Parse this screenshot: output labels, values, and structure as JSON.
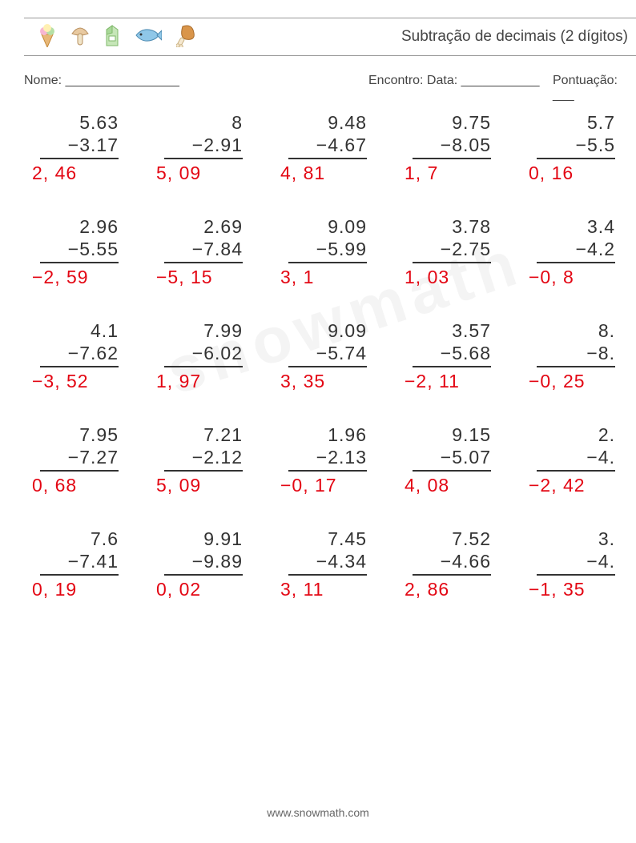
{
  "header": {
    "title": "Subtração de decimais (2 dígitos)",
    "icons": [
      "icecream",
      "mushroom",
      "milk",
      "fish",
      "drumstick"
    ]
  },
  "info": {
    "name_label": "Nome: ________________",
    "date_label": "Encontro: Data: ___________",
    "score_label": "Pontuação: ___"
  },
  "answer_color": "#e30613",
  "problem_color": "#333333",
  "problems": [
    [
      {
        "a": "5.63",
        "b": "−3.17",
        "ans": "2, 46"
      },
      {
        "a": "8",
        "b": "−2.91",
        "ans": "5, 09"
      },
      {
        "a": "9.48",
        "b": "−4.67",
        "ans": "4, 81"
      },
      {
        "a": "9.75",
        "b": "−8.05",
        "ans": "1, 7"
      },
      {
        "a": "5.7",
        "b": "−5.5",
        "ans": "0, 16"
      }
    ],
    [
      {
        "a": "2.96",
        "b": "−5.55",
        "ans": "−2, 59"
      },
      {
        "a": "2.69",
        "b": "−7.84",
        "ans": "−5, 15"
      },
      {
        "a": "9.09",
        "b": "−5.99",
        "ans": "3, 1"
      },
      {
        "a": "3.78",
        "b": "−2.75",
        "ans": "1, 03"
      },
      {
        "a": "3.4",
        "b": "−4.2",
        "ans": "−0, 8"
      }
    ],
    [
      {
        "a": "4.1",
        "b": "−7.62",
        "ans": "−3, 52"
      },
      {
        "a": "7.99",
        "b": "−6.02",
        "ans": "1, 97"
      },
      {
        "a": "9.09",
        "b": "−5.74",
        "ans": "3, 35"
      },
      {
        "a": "3.57",
        "b": "−5.68",
        "ans": "−2, 11"
      },
      {
        "a": "8.",
        "b": "−8.",
        "ans": "−0, 25"
      }
    ],
    [
      {
        "a": "7.95",
        "b": "−7.27",
        "ans": "0, 68"
      },
      {
        "a": "7.21",
        "b": "−2.12",
        "ans": "5, 09"
      },
      {
        "a": "1.96",
        "b": "−2.13",
        "ans": "−0, 17"
      },
      {
        "a": "9.15",
        "b": "−5.07",
        "ans": "4, 08"
      },
      {
        "a": "2.",
        "b": "−4.",
        "ans": "−2, 42"
      }
    ],
    [
      {
        "a": "7.6",
        "b": "−7.41",
        "ans": "0, 19"
      },
      {
        "a": "9.91",
        "b": "−9.89",
        "ans": "0, 02"
      },
      {
        "a": "7.45",
        "b": "−4.34",
        "ans": "3, 11"
      },
      {
        "a": "7.52",
        "b": "−4.66",
        "ans": "2, 86"
      },
      {
        "a": "3.",
        "b": "−4.",
        "ans": "−1, 35"
      }
    ]
  ],
  "footer": "www.snowmath.com",
  "watermark": "snowmath"
}
